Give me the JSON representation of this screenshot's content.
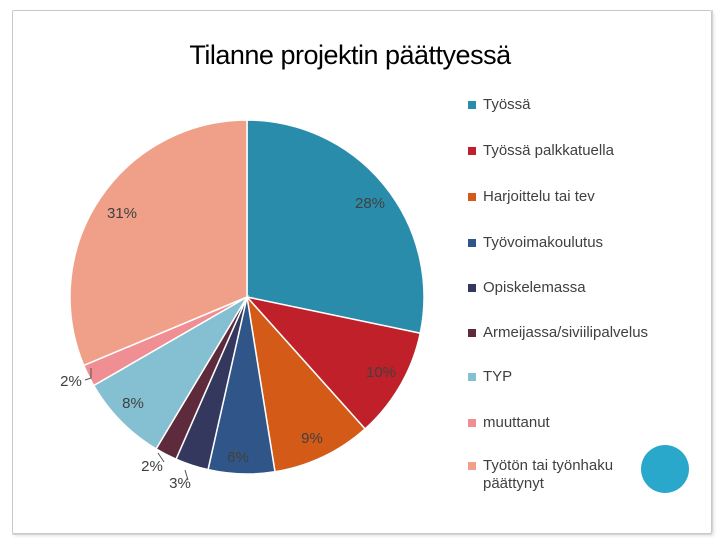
{
  "chart_data": {
    "type": "pie",
    "title": "Tilanne projektin päättyessä",
    "categories": [
      "Työssä",
      "Työssä palkkatuella",
      "Harjoittelu tai tev",
      "Työvoimakoulutus",
      "Opiskelemassa",
      "Armeijassa/siviilipalvelus",
      "TYP",
      "muuttanut",
      "Työtön tai työnhaku päättynyt"
    ],
    "values": [
      28,
      10,
      9,
      6,
      3,
      2,
      8,
      2,
      31
    ],
    "data_labels": [
      "28%",
      "10%",
      "9%",
      "6%",
      "3%",
      "2%",
      "8%",
      "2%",
      "31%"
    ],
    "colors": [
      "#2a8cab",
      "#c0202a",
      "#d35a17",
      "#2f5589",
      "#35385e",
      "#5e2b3c",
      "#85c0d2",
      "#ef8f93",
      "#f0a088"
    ],
    "legend_position": "right",
    "start_angle_deg": 0,
    "direction": "clockwise"
  },
  "decor": {
    "circle_color": "#2aa8cc"
  }
}
